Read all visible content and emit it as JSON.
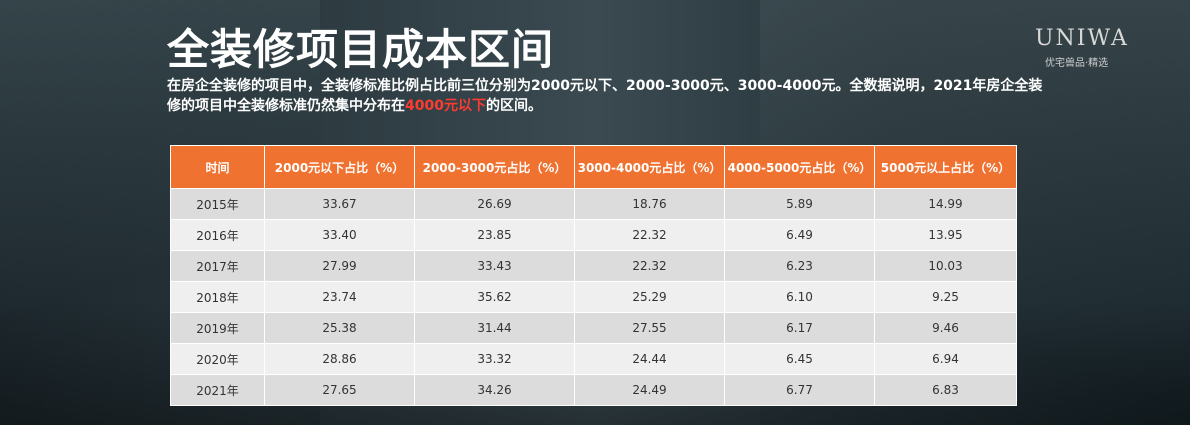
{
  "title": "全装修项目成本区间",
  "description": {
    "text1": "在房企全装修的项目中，全装修标准比例占比前三位分别为2000元以下、2000-3000元、3000-4000元。全数据说明，2021年房企全装修的项目中全装修标准仍然集中分布在",
    "highlight": "4000元以下",
    "text2": "的区间。",
    "highlight_color": "#ff3b2f"
  },
  "logo": {
    "text": "UNIWA",
    "sub": "优宅兽品·精选"
  },
  "colors": {
    "header_bg": "#f07230"
  },
  "table": {
    "headers": [
      "时间",
      "2000元以下占比（%）",
      "2000-3000元占比（%）",
      "3000-4000元占比（%）",
      "4000-5000元占比（%）",
      "5000元以上占比（%）"
    ],
    "rows": [
      [
        "2015年",
        "33.67",
        "26.69",
        "18.76",
        "5.89",
        "14.99"
      ],
      [
        "2016年",
        "33.40",
        "23.85",
        "22.32",
        "6.49",
        "13.95"
      ],
      [
        "2017年",
        "27.99",
        "33.43",
        "22.32",
        "6.23",
        "10.03"
      ],
      [
        "2018年",
        "23.74",
        "35.62",
        "25.29",
        "6.10",
        "9.25"
      ],
      [
        "2019年",
        "25.38",
        "31.44",
        "27.55",
        "6.17",
        "9.46"
      ],
      [
        "2020年",
        "28.86",
        "33.32",
        "24.44",
        "6.45",
        "6.94"
      ],
      [
        "2021年",
        "27.65",
        "34.26",
        "24.49",
        "6.77",
        "6.83"
      ]
    ]
  }
}
